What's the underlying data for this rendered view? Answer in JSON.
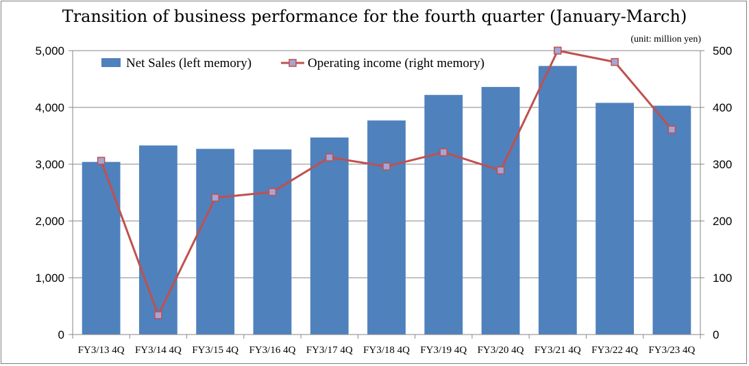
{
  "chart_data": {
    "type": "bar",
    "title": "Transition of business performance for the fourth quarter (January-March)",
    "unit_note": "(unit: million yen)",
    "categories": [
      "FY3/13 4Q",
      "FY3/14 4Q",
      "FY3/15 4Q",
      "FY3/16 4Q",
      "FY3/17 4Q",
      "FY3/18 4Q",
      "FY3/19 4Q",
      "FY3/20 4Q",
      "FY3/21 4Q",
      "FY3/22 4Q",
      "FY3/23 4Q"
    ],
    "series": [
      {
        "name": "Net Sales (left memory)",
        "type": "bar",
        "axis": "left",
        "color": "#4f81bd",
        "values": [
          3040,
          3330,
          3270,
          3260,
          3470,
          3770,
          4220,
          4360,
          4730,
          4080,
          4030
        ]
      },
      {
        "name": "Operating income (right memory)",
        "type": "line",
        "axis": "right",
        "color": "#c0504d",
        "marker_color": "#a5a5d6",
        "values": [
          306,
          34,
          241,
          251,
          312,
          296,
          321,
          289,
          500,
          480,
          361
        ]
      }
    ],
    "y_left": {
      "min": 0,
      "max": 5000,
      "ticks": [
        "0",
        "1,000",
        "2,000",
        "3,000",
        "4,000",
        "5,000"
      ]
    },
    "y_right": {
      "min": 0,
      "max": 500,
      "ticks": [
        "0",
        "100",
        "200",
        "300",
        "400",
        "500"
      ]
    },
    "grid": true,
    "legend_position": "top-left"
  }
}
